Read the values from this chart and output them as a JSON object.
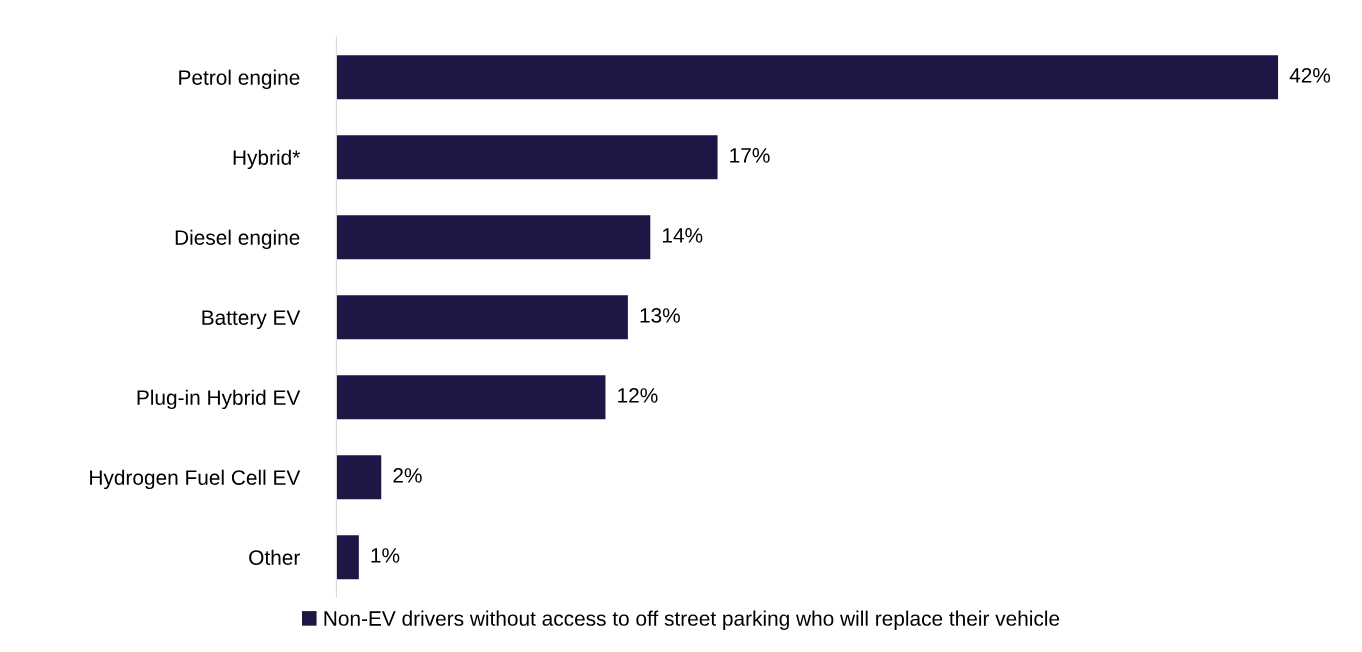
{
  "chart_data": {
    "type": "bar",
    "orientation": "horizontal",
    "categories": [
      "Petrol engine",
      "Hybrid*",
      "Diesel engine",
      "Battery EV",
      "Plug-in Hybrid EV",
      "Hydrogen Fuel Cell EV",
      "Other"
    ],
    "series": [
      {
        "name": "Non-EV drivers without access to off street parking who will replace their vehicle",
        "color": "#1f1646",
        "values": [
          42,
          17,
          14,
          13,
          12,
          2,
          1
        ],
        "value_labels": [
          "42%",
          "17%",
          "14%",
          "13%",
          "12%",
          "2%",
          "1%"
        ]
      }
    ],
    "legend": "bottom",
    "grid": false
  }
}
